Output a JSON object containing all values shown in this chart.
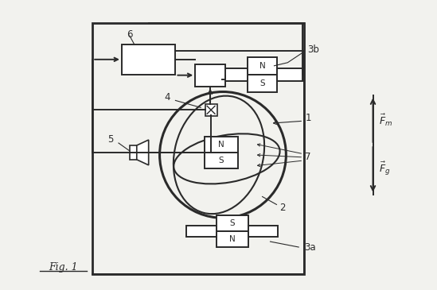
{
  "bg_color": "#f2f2ee",
  "line_color": "#2a2a2a",
  "fig_label": "Fig. 1",
  "force_label_m": "$\\vec{F}_m$",
  "force_label_g": "$\\vec{F}_g$"
}
